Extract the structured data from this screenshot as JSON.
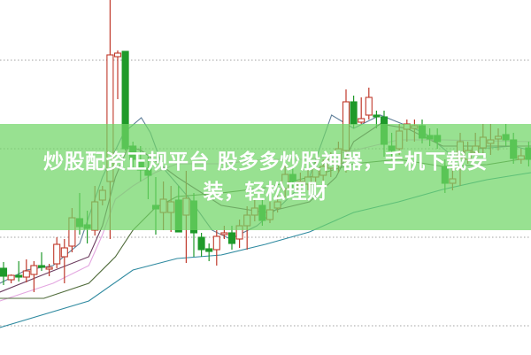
{
  "banner": {
    "line1": "炒股配资正规平台 股多多炒股神器，手机下载安",
    "line2": "装，轻松理财",
    "color": "#95e08f"
  },
  "chart_data": {
    "type": "candlestick",
    "title": "",
    "xlabel": "",
    "ylabel": "",
    "grid": "horizontal dotted",
    "ylim": [
      0,
      400
    ],
    "up_color": "#c0392b",
    "down_color": "#1f9a2a",
    "candles": [
      [
        97,
        104,
        78,
        88
      ],
      [
        84,
        90,
        80,
        89
      ],
      [
        89,
        105,
        82,
        87
      ],
      [
        87,
        107,
        81,
        94
      ],
      [
        90,
        105,
        70,
        100
      ],
      [
        100,
        115,
        94,
        98
      ],
      [
        96,
        102,
        88,
        98
      ],
      [
        102,
        132,
        97,
        124
      ],
      [
        110,
        130,
        80,
        120
      ],
      [
        122,
        165,
        115,
        154
      ],
      [
        153,
        182,
        135,
        144
      ],
      [
        146,
        162,
        125,
        142
      ],
      [
        140,
        190,
        134,
        172
      ],
      [
        174,
        190,
        168,
        185
      ],
      [
        195,
        400,
        130,
        338
      ],
      [
        336,
        343,
        288,
        340
      ],
      [
        342,
        342,
        230,
        232
      ],
      [
        235,
        240,
        210,
        220
      ],
      [
        218,
        235,
        195,
        208
      ],
      [
        210,
        225,
        175,
        202
      ],
      [
        168,
        200,
        135,
        164
      ],
      [
        160,
        195,
        140,
        175
      ],
      [
        160,
        190,
        138,
        172
      ],
      [
        174,
        190,
        138,
        138
      ],
      [
        157,
        207,
        103,
        176
      ],
      [
        173,
        182,
        110,
        137
      ],
      [
        132,
        137,
        110,
        118
      ],
      [
        119,
        125,
        105,
        116
      ],
      [
        118,
        140,
        100,
        133
      ],
      [
        135,
        145,
        130,
        137
      ],
      [
        137,
        145,
        118,
        125
      ],
      [
        130,
        152,
        120,
        145
      ],
      [
        145,
        167,
        118,
        157
      ],
      [
        157,
        175,
        150,
        165
      ],
      [
        168,
        175,
        145,
        151
      ],
      [
        152,
        172,
        148,
        163
      ],
      [
        165,
        180,
        160,
        172
      ],
      [
        187,
        213,
        177,
        203
      ],
      [
        203,
        210,
        185,
        195
      ],
      [
        185,
        205,
        175,
        195
      ],
      [
        192,
        208,
        185,
        200
      ],
      [
        200,
        218,
        190,
        210
      ],
      [
        202,
        220,
        195,
        212
      ],
      [
        210,
        228,
        200,
        220
      ],
      [
        215,
        240,
        205,
        232
      ],
      [
        230,
        299,
        205,
        285
      ],
      [
        285,
        292,
        255,
        260
      ],
      [
        262,
        290,
        260,
        266
      ],
      [
        270,
        301,
        265,
        290
      ],
      [
        270,
        275,
        255,
        268
      ],
      [
        268,
        275,
        223,
        237
      ],
      [
        235,
        250,
        220,
        230
      ],
      [
        232,
        260,
        225,
        252
      ],
      [
        254,
        265,
        240,
        260
      ],
      [
        255,
        265,
        240,
        258
      ],
      [
        258,
        265,
        238,
        244
      ],
      [
        247,
        255,
        235,
        243
      ],
      [
        247,
        255,
        232,
        240
      ],
      [
        212,
        220,
        182,
        193
      ],
      [
        193,
        210,
        185,
        198
      ],
      [
        222,
        250,
        190,
        240
      ],
      [
        220,
        240,
        215,
        230
      ],
      [
        228,
        250,
        220,
        235
      ],
      [
        233,
        260,
        225,
        245
      ],
      [
        238,
        260,
        225,
        242
      ],
      [
        243,
        255,
        230,
        246
      ],
      [
        248,
        260,
        235,
        242
      ],
      [
        242,
        250,
        215,
        221
      ],
      [
        220,
        232,
        215,
        224
      ],
      [
        233,
        240,
        212,
        220
      ]
    ],
    "moving_averages": [
      {
        "color": "#5f7f9a",
        "points": [
          [
            -0.5,
            80
          ],
          [
            3,
            95
          ],
          [
            6.5,
            100
          ],
          [
            10,
            125
          ],
          [
            13,
            200
          ],
          [
            15.8,
            250
          ],
          [
            18.1,
            267
          ],
          [
            19.3,
            250
          ],
          [
            21,
            210
          ],
          [
            24.5,
            175
          ],
          [
            27.4,
            140
          ],
          [
            29.8,
            130
          ],
          [
            33.3,
            145
          ],
          [
            36.7,
            170
          ],
          [
            40.2,
            200
          ],
          [
            43.1,
            270
          ],
          [
            46,
            255
          ],
          [
            49.5,
            270
          ],
          [
            55.3,
            250
          ],
          [
            58.8,
            225
          ],
          [
            62.3,
            232
          ],
          [
            67,
            235
          ],
          [
            69.3,
            230
          ]
        ]
      },
      {
        "color": "#6b3b5e",
        "points": [
          [
            -0.5,
            70
          ],
          [
            5.3,
            90
          ],
          [
            11.2,
            110
          ],
          [
            13,
            145
          ],
          [
            14.7,
            200
          ],
          [
            16.4,
            235
          ],
          [
            18.1,
            230
          ],
          [
            22.8,
            200
          ],
          [
            28.6,
            168
          ],
          [
            34.4,
            160
          ],
          [
            40.2,
            172
          ],
          [
            43.7,
            200
          ],
          [
            46,
            240
          ],
          [
            49.5,
            260
          ],
          [
            53,
            255
          ],
          [
            57.7,
            235
          ],
          [
            63.5,
            235
          ],
          [
            69.3,
            235
          ]
        ]
      },
      {
        "color": "#e3a6e0",
        "points": [
          [
            -0.5,
            60
          ],
          [
            6.5,
            80
          ],
          [
            11.2,
            100
          ],
          [
            13,
            135
          ],
          [
            14.7,
            175
          ],
          [
            17,
            190
          ],
          [
            19.9,
            205
          ],
          [
            22.8,
            215
          ],
          [
            28.6,
            215
          ],
          [
            34.4,
            220
          ],
          [
            40.2,
            220
          ],
          [
            46,
            230
          ],
          [
            51.9,
            242
          ],
          [
            57.7,
            242
          ],
          [
            69.3,
            240
          ]
        ]
      },
      {
        "color": "#4f6b3a",
        "points": [
          [
            -0.5,
            63
          ],
          [
            5.3,
            63
          ],
          [
            11.2,
            80
          ],
          [
            14.7,
            110
          ],
          [
            17,
            140
          ],
          [
            19.9,
            165
          ],
          [
            22.8,
            178
          ],
          [
            28.6,
            182
          ],
          [
            34.4,
            188
          ],
          [
            40.2,
            200
          ],
          [
            46,
            215
          ],
          [
            51.9,
            220
          ],
          [
            57.7,
            212
          ],
          [
            63.5,
            214
          ],
          [
            69.3,
            222
          ]
        ]
      },
      {
        "color": "#2f8aa0",
        "points": [
          [
            -0.5,
            30
          ],
          [
            11.2,
            60
          ],
          [
            17,
            95
          ],
          [
            22.8,
            108
          ],
          [
            28.6,
            112
          ],
          [
            34.4,
            124
          ],
          [
            40.2,
            138
          ],
          [
            46,
            160
          ],
          [
            51.9,
            172
          ],
          [
            57.7,
            186
          ],
          [
            63.5,
            197
          ],
          [
            69.3,
            205
          ]
        ]
      }
    ]
  }
}
